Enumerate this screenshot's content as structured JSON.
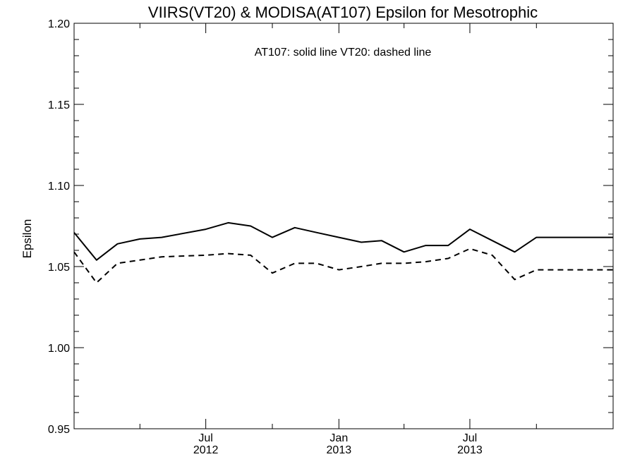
{
  "chart_data": {
    "type": "line",
    "title": "VIIRS(VT20) & MODISA(AT107)  Epsilon for Mesotrophic",
    "annotation": "AT107: solid line   VT20: dashed line",
    "xlabel": "",
    "ylabel": "Epsilon",
    "ylim": [
      0.95,
      1.2
    ],
    "xlim": [
      "2012-01-01",
      "2014-01-15"
    ],
    "y_ticks": [
      "0.95",
      "1.00",
      "1.05",
      "1.10",
      "1.15",
      "1.20"
    ],
    "x_ticks": [
      {
        "month": "Jul",
        "year": "2012",
        "date": "2012-07-01"
      },
      {
        "month": "Jan",
        "year": "2013",
        "date": "2013-01-01"
      },
      {
        "month": "Jul",
        "year": "2013",
        "date": "2013-07-01"
      }
    ],
    "grid": false,
    "x": [
      "2012-01-01",
      "2012-02-01",
      "2012-03-01",
      "2012-04-01",
      "2012-05-01",
      "2012-06-01",
      "2012-07-01",
      "2012-08-01",
      "2012-09-01",
      "2012-10-01",
      "2012-11-01",
      "2012-12-01",
      "2013-01-01",
      "2013-02-01",
      "2013-03-01",
      "2013-04-01",
      "2013-05-01",
      "2013-06-01",
      "2013-07-01",
      "2013-08-01",
      "2013-09-01",
      "2013-10-01",
      "2013-11-01",
      "2013-12-01",
      "2014-01-01"
    ],
    "series": [
      {
        "name": "AT107",
        "style": "solid",
        "color": "#000000",
        "x": [
          "2012-01-01",
          "2012-02-01",
          "2012-03-01",
          "2012-04-01",
          "2012-05-01",
          "2012-07-01",
          "2012-08-01",
          "2012-09-01",
          "2012-10-01",
          "2012-11-01",
          "2012-12-01",
          "2013-01-01",
          "2013-02-01",
          "2013-03-01",
          "2013-04-01",
          "2013-05-01",
          "2013-06-01",
          "2013-07-01",
          "2013-08-01",
          "2013-09-01",
          "2013-10-01",
          "2013-11-01",
          "2013-12-01",
          "2014-01-15"
        ],
        "values": [
          1.071,
          1.054,
          1.064,
          1.067,
          1.068,
          1.073,
          1.077,
          1.075,
          1.068,
          1.074,
          1.071,
          1.068,
          1.065,
          1.066,
          1.059,
          1.063,
          1.063,
          1.073,
          1.066,
          1.059,
          1.068,
          1.068,
          1.068,
          1.068
        ]
      },
      {
        "name": "VT20",
        "style": "dashed",
        "color": "#000000",
        "x": [
          "2012-01-01",
          "2012-02-01",
          "2012-03-01",
          "2012-04-01",
          "2012-05-01",
          "2012-07-01",
          "2012-08-01",
          "2012-09-01",
          "2012-10-01",
          "2012-11-01",
          "2012-12-01",
          "2013-01-01",
          "2013-02-01",
          "2013-03-01",
          "2013-04-01",
          "2013-05-01",
          "2013-06-01",
          "2013-07-01",
          "2013-08-01",
          "2013-09-01",
          "2013-10-01",
          "2013-11-01",
          "2013-12-01",
          "2014-01-15"
        ],
        "values": [
          1.059,
          1.04,
          1.052,
          1.054,
          1.056,
          1.057,
          1.058,
          1.057,
          1.046,
          1.052,
          1.052,
          1.048,
          1.05,
          1.052,
          1.052,
          1.053,
          1.055,
          1.061,
          1.057,
          1.042,
          1.048,
          1.048,
          1.048,
          1.048
        ]
      }
    ]
  }
}
